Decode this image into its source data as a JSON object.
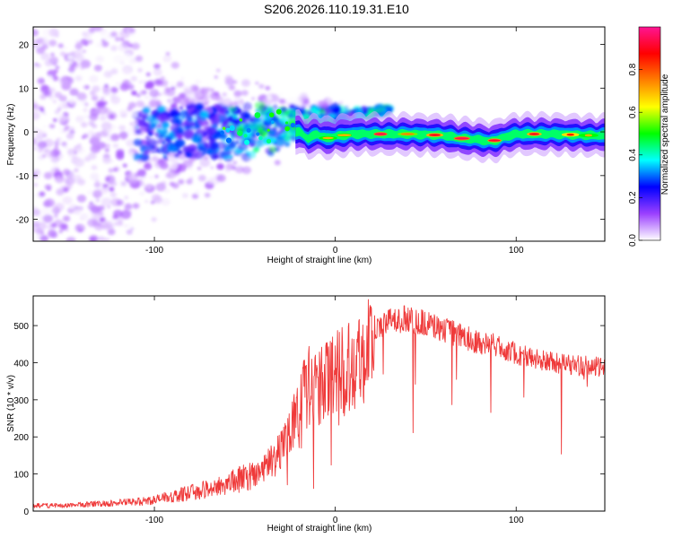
{
  "page_title": "S206.2026.110.19.31.E10",
  "colors": {
    "snr_line": "#ef3a3a",
    "colorbar_stops": [
      "#ffffff",
      "#9b40ff",
      "#0000ff",
      "#00ffff",
      "#00ff00",
      "#ffff00",
      "#ff7f00",
      "#ff0000",
      "#ff1493"
    ]
  },
  "chart_data": [
    {
      "type": "heatmap",
      "title": "S206.2026.110.19.31.E10",
      "xlabel": "Height of straight line (km)",
      "ylabel": "Frequency (Hz)",
      "xlim": [
        -167,
        149
      ],
      "ylim": [
        -25,
        24
      ],
      "xticks": [
        -100,
        0,
        100
      ],
      "xtick_labels": [
        "-100",
        "0",
        "100"
      ],
      "yticks": [
        -20,
        -10,
        0,
        10,
        20
      ],
      "ytick_labels": [
        "-20",
        "-10",
        "0",
        "10",
        "20"
      ],
      "colorbar": {
        "label": "Normalized spectral amplitude",
        "range": [
          0,
          1
        ],
        "ticks": [
          0.0,
          0.2,
          0.4,
          0.6,
          0.8
        ],
        "tick_labels": [
          "0.0",
          "0.2",
          "0.4",
          "0.6",
          "0.8"
        ]
      },
      "ridge_frequency_hz": {
        "height_km": [
          -20,
          -15,
          -10,
          -5,
          0,
          10,
          20,
          40,
          60,
          70,
          80,
          85,
          90,
          95,
          100,
          120,
          140,
          149
        ],
        "frequency": [
          0,
          -1.5,
          -0.5,
          -1.5,
          -1,
          -0.5,
          -0.5,
          -0.5,
          -0.8,
          -1.5,
          -1.8,
          -2.2,
          -1.8,
          -1,
          -0.5,
          -0.5,
          -0.8,
          -0.8
        ]
      }
    },
    {
      "type": "line",
      "xlabel": "Height of straight line (km)",
      "ylabel": "SNR (10 * v/v)",
      "xlim": [
        -167,
        149
      ],
      "ylim": [
        0,
        580
      ],
      "xticks": [
        -100,
        0,
        100
      ],
      "xtick_labels": [
        "-100",
        "0",
        "100"
      ],
      "yticks": [
        0,
        100,
        200,
        300,
        400,
        500
      ],
      "ytick_labels": [
        "0",
        "100",
        "200",
        "300",
        "400",
        "500"
      ],
      "series": [
        {
          "name": "SNR",
          "x": [
            -167,
            -150,
            -130,
            -110,
            -100,
            -90,
            -80,
            -70,
            -60,
            -50,
            -45,
            -40,
            -35,
            -30,
            -25,
            -20,
            -15,
            -12,
            -10,
            -5,
            0,
            5,
            10,
            15,
            20,
            25,
            30,
            40,
            50,
            60,
            70,
            80,
            90,
            100,
            110,
            120,
            130,
            140,
            149
          ],
          "values": [
            15,
            15,
            20,
            25,
            30,
            40,
            50,
            60,
            75,
            90,
            100,
            110,
            140,
            170,
            220,
            300,
            330,
            360,
            320,
            350,
            400,
            380,
            410,
            420,
            460,
            500,
            510,
            520,
            505,
            490,
            470,
            455,
            445,
            425,
            410,
            400,
            395,
            390,
            385
          ]
        }
      ]
    }
  ]
}
